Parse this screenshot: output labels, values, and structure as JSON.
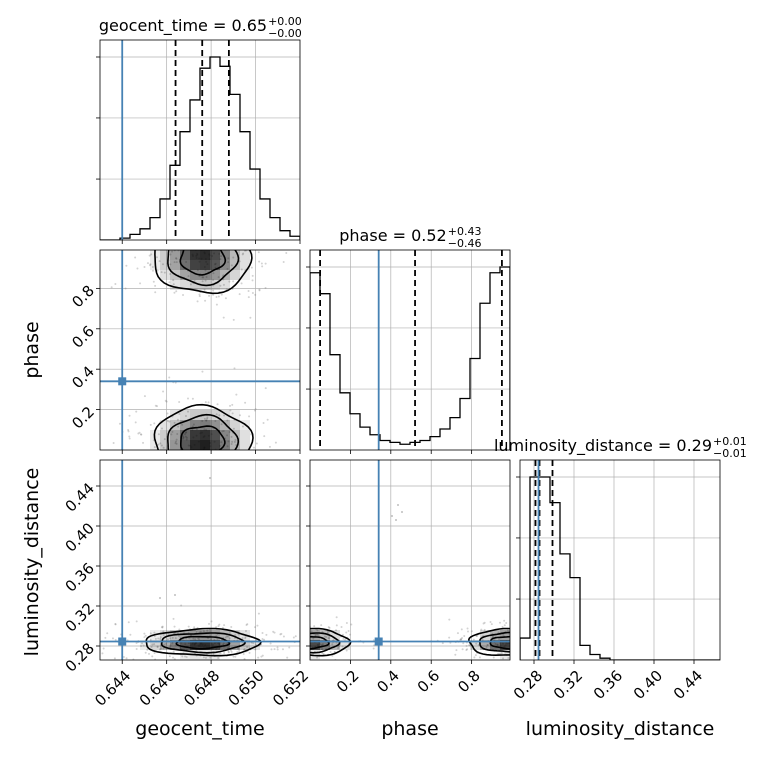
{
  "chart_data": {
    "type": "corner",
    "colors": {
      "truth": "#4682b4",
      "hist": "#000000",
      "points": "#808080",
      "grid": "#b0b0b0"
    },
    "parameters": [
      {
        "name": "geocent_time",
        "xlabel": "geocent_time",
        "range": [
          0.643,
          0.652
        ],
        "ticks": [
          0.644,
          0.646,
          0.648,
          0.65,
          0.652
        ],
        "tick_labels": [
          "0.644",
          "0.646",
          "0.648",
          "0.650",
          "0.652"
        ],
        "truth": 0.644,
        "quantiles": [
          0.6464,
          0.6476,
          0.6488
        ],
        "title": {
          "main": "geocent_time = 0.65",
          "sup": "+0.00",
          "sub": "−0.00"
        }
      },
      {
        "name": "phase",
        "xlabel": "phase",
        "ylabel": "phase",
        "range": [
          0.0,
          0.99
        ],
        "ticks": [
          0.2,
          0.4,
          0.6,
          0.8
        ],
        "tick_labels": [
          "0.2",
          "0.4",
          "0.6",
          "0.8"
        ],
        "truth": 0.34,
        "quantiles": [
          0.05,
          0.52,
          0.95
        ],
        "title": {
          "main": "phase = 0.52",
          "sup": "+0.43",
          "sub": "−0.46"
        }
      },
      {
        "name": "luminosity_distance",
        "xlabel": "luminosity_distance",
        "ylabel": "luminosity_distance",
        "range": [
          0.266,
          0.466
        ],
        "ticks": [
          0.28,
          0.32,
          0.36,
          0.4,
          0.44
        ],
        "tick_labels": [
          "0.28",
          "0.32",
          "0.36",
          "0.40",
          "0.44"
        ],
        "truth": 0.2845,
        "quantiles": [
          0.2815,
          0.2855,
          0.2985
        ],
        "title": {
          "main": "luminosity_distance = 0.29",
          "sup": "+0.01",
          "sub": "−0.01"
        }
      }
    ],
    "histograms": {
      "geocent_time": [
        0,
        0,
        1,
        3,
        6,
        12,
        22,
        40,
        58,
        75,
        92,
        98,
        93,
        78,
        58,
        38,
        22,
        12,
        5,
        2
      ],
      "phase": [
        93,
        82,
        50,
        30,
        19,
        12,
        8,
        5,
        4,
        3,
        4,
        5,
        7,
        11,
        17,
        27,
        48,
        77,
        93,
        96
      ],
      "luminosity_distance": [
        12,
        100,
        100,
        86,
        58,
        45,
        8,
        3,
        1,
        0,
        0,
        0,
        0,
        0,
        0,
        0,
        0,
        0,
        0,
        0
      ]
    },
    "grid": true
  }
}
